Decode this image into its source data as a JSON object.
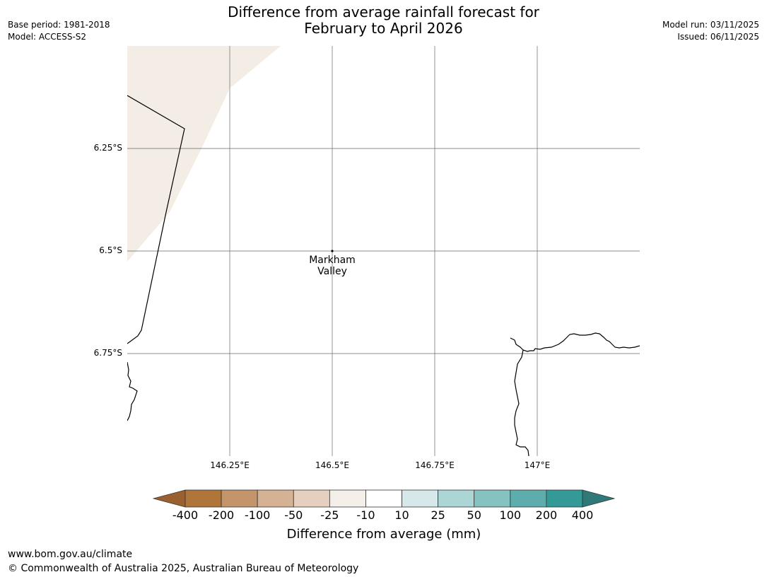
{
  "header": {
    "base_period": "Base period: 1981-2018",
    "model": "Model: ACCESS-S2",
    "title_line1": "Difference from average rainfall forecast for",
    "title_line2": "February to April 2026",
    "model_run": "Model run: 03/11/2025",
    "issued": "Issued: 06/11/2025"
  },
  "map": {
    "lon_range": [
      146.0,
      147.25
    ],
    "lat_range": [
      -6.0,
      -7.0
    ],
    "latitude_labels": [
      {
        "value": -6.25,
        "label": "6.25°S"
      },
      {
        "value": -6.5,
        "label": "6.5°S"
      },
      {
        "value": -6.75,
        "label": "6.75°S"
      }
    ],
    "longitude_labels": [
      {
        "value": 146.25,
        "label": "146.25°E"
      },
      {
        "value": 146.5,
        "label": "146.5°E"
      },
      {
        "value": 146.75,
        "label": "146.75°E"
      },
      {
        "value": 147.0,
        "label": "147°E"
      }
    ],
    "place": {
      "name_line1": "Markham",
      "name_line2": "Valley",
      "lon": 146.5,
      "lat": -6.5
    },
    "shaded_category": "-10 to -25 mm",
    "shaded_color": "#f3ede6",
    "line_color": "#000000",
    "grid_color": "#666666"
  },
  "colorbar": {
    "title": "Difference from average (mm)",
    "tick_labels": [
      "-400",
      "-200",
      "-100",
      "-50",
      "-25",
      "-10",
      "10",
      "25",
      "50",
      "100",
      "200",
      "400"
    ],
    "colors": [
      "#b07539",
      "#c4956a",
      "#d4b293",
      "#e5d0bf",
      "#f4efe9",
      "#ffffff",
      "#d6e8e9",
      "#acd5d5",
      "#85c2c0",
      "#5cadac",
      "#339a98"
    ],
    "extend_low_color": "#9b6030",
    "extend_high_color": "#2f7a78"
  },
  "footer": {
    "website": "www.bom.gov.au/climate",
    "copyright": "© Commonwealth of Australia 2025, Australian Bureau of Meteorology"
  }
}
